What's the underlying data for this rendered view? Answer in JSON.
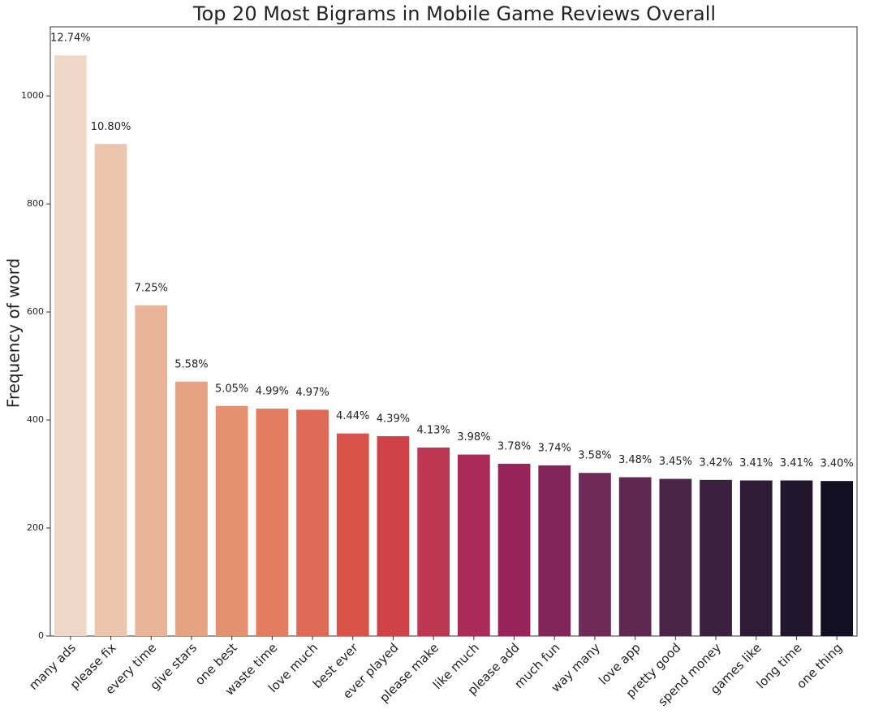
{
  "chart_data": {
    "type": "bar",
    "title": "Top 20 Most Bigrams in Mobile Game Reviews Overall",
    "y_label": "Frequency of word",
    "categories": [
      "many ads",
      "please fix",
      "every time",
      "give stars",
      "one best",
      "waste time",
      "love much",
      "best ever",
      "ever played",
      "please make",
      "like much",
      "please add",
      "much fun",
      "way many",
      "love app",
      "pretty good",
      "spend money",
      "games like",
      "long time",
      "one thing"
    ],
    "values": [
      1075,
      911,
      612,
      471,
      426,
      421,
      419,
      375,
      370,
      349,
      336,
      319,
      316,
      302,
      294,
      291,
      289,
      288,
      288,
      287
    ],
    "bar_annotations": [
      "12.74%",
      "10.80%",
      "7.25%",
      "5.58%",
      "5.05%",
      "4.99%",
      "4.97%",
      "4.44%",
      "4.39%",
      "4.13%",
      "3.98%",
      "3.78%",
      "3.74%",
      "3.58%",
      "3.48%",
      "3.45%",
      "3.42%",
      "3.41%",
      "3.41%",
      "3.40%"
    ],
    "colors": [
      "#f0d8c8",
      "#ecc5ad",
      "#e9b497",
      "#e6a383",
      "#e49170",
      "#e27d60",
      "#de6a55",
      "#d9534b",
      "#cf4348",
      "#bd3753",
      "#ab2b58",
      "#962359",
      "#83255a",
      "#702a57",
      "#5e2852",
      "#4c244a",
      "#3d1f40",
      "#301b36",
      "#22162d",
      "#130f22"
    ],
    "ylim": [
      0,
      1128
    ],
    "yticks": [
      0,
      200,
      400,
      600,
      800,
      1000
    ],
    "grid": false
  }
}
